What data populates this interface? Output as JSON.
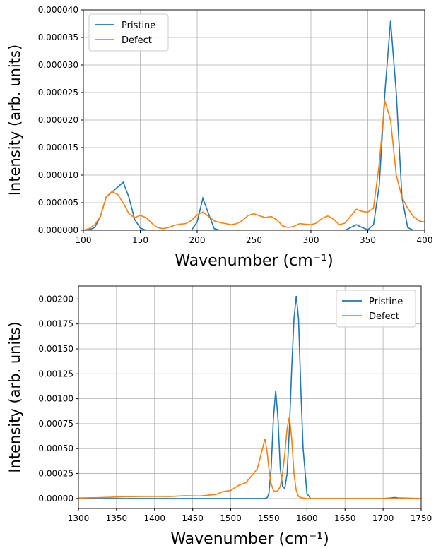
{
  "chart_data": [
    {
      "type": "line",
      "xlabel": "Wavenumber (cm⁻¹)",
      "ylabel": "Intensity (arb. units)",
      "x": [
        100,
        105,
        110,
        115,
        120,
        125,
        130,
        135,
        140,
        145,
        150,
        155,
        160,
        165,
        170,
        175,
        180,
        185,
        190,
        195,
        200,
        205,
        210,
        215,
        220,
        225,
        230,
        235,
        240,
        245,
        250,
        255,
        260,
        265,
        270,
        275,
        280,
        285,
        290,
        295,
        300,
        305,
        310,
        315,
        320,
        325,
        330,
        335,
        340,
        345,
        350,
        355,
        360,
        365,
        370,
        375,
        380,
        385,
        390,
        395,
        400
      ],
      "series": [
        {
          "name": "Pristine",
          "color": "#1f77b4",
          "values": [
            0,
            1e-07,
            5e-07,
            2.5e-06,
            6e-06,
            6.9e-06,
            7.8e-06,
            8.7e-06,
            6e-06,
            2e-06,
            4e-07,
            0,
            0,
            0,
            0,
            0,
            0,
            0,
            0,
            0,
            1.5e-06,
            5.8e-06,
            3e-06,
            3e-07,
            0,
            0,
            0,
            0,
            0,
            0,
            0,
            0,
            0,
            0,
            0,
            0,
            0,
            0,
            0,
            0,
            0,
            0,
            0,
            0,
            0,
            0,
            0,
            5e-07,
            1e-06,
            5e-07,
            1e-07,
            1e-06,
            8e-06,
            2.5e-05,
            3.8e-05,
            2.5e-05,
            6e-06,
            5e-07,
            0,
            0,
            0
          ]
        },
        {
          "name": "Defect",
          "color": "#ff7f0e",
          "values": [
            0,
            3e-07,
            1e-06,
            2.5e-06,
            6e-06,
            7e-06,
            6.5e-06,
            5e-06,
            3e-06,
            2.3e-06,
            2.7e-06,
            2.3e-06,
            1.3e-06,
            5e-07,
            3e-07,
            5e-07,
            9e-07,
            1.1e-06,
            1.2e-06,
            1.8e-06,
            2.8e-06,
            3.3e-06,
            2.5e-06,
            1.7e-06,
            1.4e-06,
            1.2e-06,
            1e-06,
            1.2e-06,
            1.8e-06,
            2.7e-06,
            3e-06,
            2.6e-06,
            2.3e-06,
            2.5e-06,
            1.9e-06,
            8e-07,
            5e-07,
            7e-07,
            1.2e-06,
            1.1e-06,
            1e-06,
            1.3e-06,
            2.2e-06,
            2.6e-06,
            2e-06,
            1e-06,
            1.3e-06,
            2.6e-06,
            3.8e-06,
            3.4e-06,
            3.3e-06,
            4e-06,
            1.2e-05,
            2.35e-05,
            2e-05,
            1e-05,
            6e-06,
            4e-06,
            2.5e-06,
            1.7e-06,
            1.5e-06
          ]
        }
      ],
      "xlim": [
        100,
        400
      ],
      "xticks": [
        100,
        150,
        200,
        250,
        300,
        350,
        400
      ],
      "ylim": [
        0,
        4e-05
      ],
      "yticks": [
        {
          "value": 0,
          "label": "0.000000"
        },
        {
          "value": 5e-06,
          "label": "0.000005"
        },
        {
          "value": 1e-05,
          "label": "0.000010"
        },
        {
          "value": 1.5e-05,
          "label": "0.000015"
        },
        {
          "value": 2e-05,
          "label": "0.000020"
        },
        {
          "value": 2.5e-05,
          "label": "0.000025"
        },
        {
          "value": 3e-05,
          "label": "0.000030"
        },
        {
          "value": 3.5e-05,
          "label": "0.000035"
        },
        {
          "value": 4e-05,
          "label": "0.000040"
        }
      ],
      "grid": true,
      "legend": "upper left"
    },
    {
      "type": "line",
      "xlabel": "Wavenumber (cm⁻¹)",
      "ylabel": "Intensity (arb. units)",
      "x": [
        1300,
        1320,
        1340,
        1360,
        1380,
        1400,
        1420,
        1440,
        1460,
        1480,
        1490,
        1500,
        1510,
        1520,
        1530,
        1535,
        1540,
        1545,
        1548,
        1550,
        1553,
        1556,
        1559,
        1562,
        1565,
        1568,
        1571,
        1574,
        1577,
        1580,
        1583,
        1586,
        1589,
        1592,
        1595,
        1600,
        1605,
        1610,
        1620,
        1650,
        1700,
        1710,
        1715,
        1720,
        1750
      ],
      "series": [
        {
          "name": "Pristine",
          "color": "#1f77b4",
          "values": [
            0,
            0,
            0,
            0,
            0,
            0,
            0,
            0,
            0,
            0,
            0,
            0,
            0,
            0,
            0,
            0,
            0,
            0,
            1e-05,
            5e-05,
            0.0003,
            0.0008,
            0.00108,
            0.0008,
            0.0003,
            0.00012,
            0.0001,
            0.00025,
            0.0007,
            0.0013,
            0.0018,
            0.00203,
            0.0018,
            0.0011,
            0.0005,
            5e-05,
            0,
            0,
            0,
            0,
            0,
            5e-06,
            1e-05,
            5e-06,
            0
          ]
        },
        {
          "name": "Defect",
          "color": "#ff7f0e",
          "values": [
            5e-06,
            8e-06,
            1.2e-05,
            1.8e-05,
            2e-05,
            2.2e-05,
            2e-05,
            2.8e-05,
            2.5e-05,
            4e-05,
            7e-05,
            8e-05,
            0.00013,
            0.00016,
            0.00025,
            0.0003,
            0.00045,
            0.0006,
            0.00045,
            0.0003,
            0.00015,
            8e-05,
            7e-05,
            8e-05,
            0.00012,
            0.00025,
            0.00045,
            0.0007,
            0.00082,
            0.0006,
            0.00025,
            8e-05,
            2e-05,
            1e-05,
            5e-06,
            0,
            0,
            0,
            0,
            0,
            0,
            0,
            0,
            0,
            0
          ]
        }
      ],
      "xlim": [
        1300,
        1750
      ],
      "xticks": [
        1300,
        1350,
        1400,
        1450,
        1500,
        1550,
        1600,
        1650,
        1700,
        1750
      ],
      "ylim": [
        -0.0001,
        0.00213
      ],
      "yticks": [
        {
          "value": 0,
          "label": "0.00000"
        },
        {
          "value": 0.00025,
          "label": "0.00025"
        },
        {
          "value": 0.0005,
          "label": "0.00050"
        },
        {
          "value": 0.00075,
          "label": "0.00075"
        },
        {
          "value": 0.001,
          "label": "0.00100"
        },
        {
          "value": 0.00125,
          "label": "0.00125"
        },
        {
          "value": 0.0015,
          "label": "0.00150"
        },
        {
          "value": 0.00175,
          "label": "0.00175"
        },
        {
          "value": 0.002,
          "label": "0.00200"
        }
      ],
      "grid": true,
      "legend": "upper right"
    }
  ]
}
